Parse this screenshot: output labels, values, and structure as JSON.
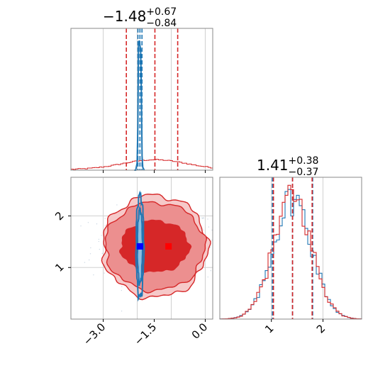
{
  "chart_data": {
    "type": "corner",
    "parameters": [
      "param_1",
      "param_2"
    ],
    "colors": {
      "red": "#d62728",
      "blue": "#1f77b4",
      "grid": "#d0d0d0",
      "axis": "#000000",
      "marker_blue": "#0000ff",
      "marker_red": "#ff0000"
    },
    "titles": [
      {
        "main": "−1.48",
        "sup": "+0.67",
        "sub": "−0.84"
      },
      {
        "main": "1.41",
        "sup": "+0.38",
        "sub": "−0.37"
      }
    ],
    "panels": {
      "hist_1": {
        "xlim": [
          -3.95,
          0.22
        ],
        "grid_x": [
          -3.0,
          -2.0,
          -1.0,
          0.0
        ],
        "quantile_lines_red": [
          -2.32,
          -1.48,
          -0.81
        ],
        "quantile_lines_blue": [
          -1.98,
          -1.92,
          -1.86
        ],
        "red_hist_peak_x": -1.48,
        "blue_peak_x": -1.92
      },
      "hist_2": {
        "xlim": [
          0.0,
          2.75
        ],
        "grid_x": [
          1.0,
          2.0
        ],
        "quantile_lines_red": [
          1.04,
          1.41,
          1.79
        ],
        "quantile_lines_blue": [
          1.02,
          1.41,
          1.8
        ],
        "mean": 1.41,
        "sigma": 0.37
      },
      "scatter": {
        "xlim": [
          -3.95,
          0.22
        ],
        "ylim": [
          0.0,
          2.75
        ],
        "grid_x": [
          -3.0,
          -2.0,
          -1.0,
          0.0
        ],
        "grid_y": [
          1.0,
          2.0
        ],
        "red_center": [
          -1.48,
          1.41
        ],
        "blue_center": [
          -1.92,
          1.41
        ],
        "marker_blue": [
          -1.92,
          1.41
        ],
        "marker_red": [
          -1.08,
          1.41
        ]
      }
    },
    "x_ticks": [
      {
        "label": "−3.0",
        "value": -3.0
      },
      {
        "label": "−1.5",
        "value": -1.5
      },
      {
        "label": "0.0",
        "value": 0.0
      }
    ],
    "y_ticks": [
      {
        "label": "1",
        "value": 1.0
      },
      {
        "label": "2",
        "value": 2.0
      }
    ],
    "x_ticks_2": [
      {
        "label": "1",
        "value": 1.0
      },
      {
        "label": "2",
        "value": 2.0
      }
    ]
  }
}
